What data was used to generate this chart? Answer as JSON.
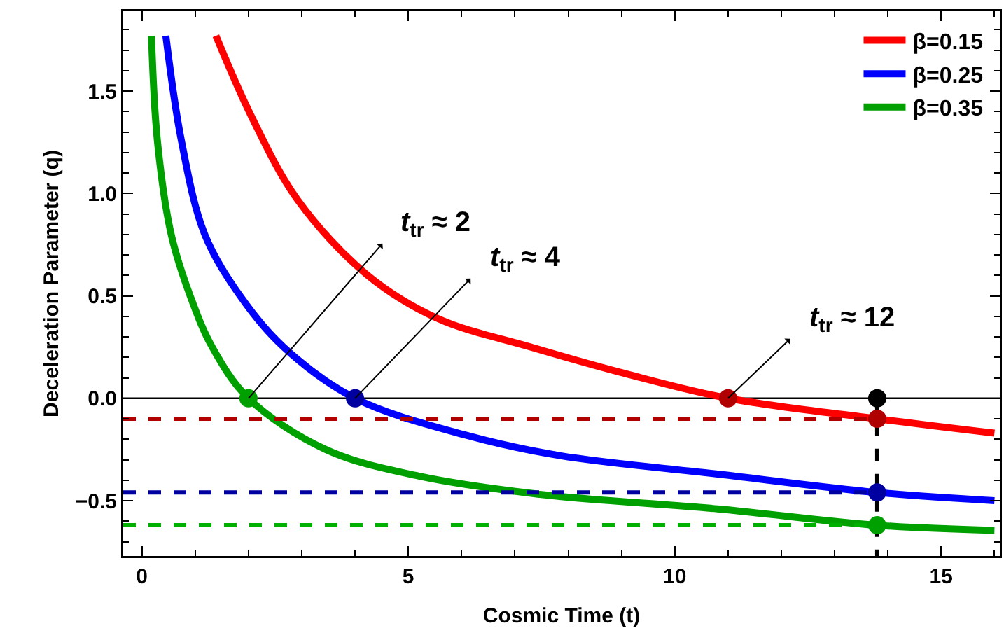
{
  "chart_data": {
    "type": "line",
    "xlabel": "Cosmic Time (t)",
    "ylabel": "Deceleration Parameter (q)",
    "xlim": [
      -0.35,
      16.1
    ],
    "ylim": [
      -0.77,
      1.89
    ],
    "xticks": [
      0,
      5,
      10,
      15
    ],
    "yticks": [
      {
        "value": -0.5,
        "label": "−0.5"
      },
      {
        "value": 0,
        "label": "0.0"
      },
      {
        "value": 0.5,
        "label": "0.5"
      },
      {
        "value": 1,
        "label": "1.0"
      },
      {
        "value": 1.5,
        "label": "1.5"
      }
    ],
    "grid": false,
    "legend": "top right",
    "line_style": "solid",
    "marker": "none",
    "series": [
      {
        "name": "β=0.15",
        "color": "#ff0000",
        "x": [
          1.39,
          2.05,
          2.92,
          4.24,
          5.55,
          7.3,
          9.08,
          11,
          13.8,
          16
        ],
        "values": [
          1.77,
          1.38,
          0.97,
          0.6,
          0.39,
          0.25,
          0.12,
          0,
          -0.1,
          -0.17
        ]
      },
      {
        "name": "β=0.25",
        "color": "#0000ff",
        "x": [
          0.45,
          0.74,
          1.18,
          1.87,
          2.66,
          4,
          6.08,
          7.84,
          10.8,
          13.8,
          16
        ],
        "values": [
          1.77,
          1.26,
          0.8,
          0.49,
          0.25,
          0,
          -0.18,
          -0.28,
          -0.37,
          -0.46,
          -0.5
        ]
      },
      {
        "name": "β=0.35",
        "color": "#00a000",
        "x": [
          0.18,
          0.29,
          0.55,
          0.92,
          1.32,
          2,
          3.45,
          5.2,
          7.5,
          10.8,
          13.8,
          16
        ],
        "values": [
          1.77,
          1.26,
          0.8,
          0.49,
          0.25,
          0,
          -0.25,
          -0.38,
          -0.47,
          -0.54,
          -0.62,
          -0.645
        ]
      },
      {
        "color": "#b00000",
        "line_style": "dashed",
        "x": [
          -0.35,
          13.8
        ],
        "values": [
          -0.1,
          -0.1
        ]
      },
      {
        "color": "#0000a0",
        "line_style": "dashed",
        "x": [
          -0.35,
          13.8
        ],
        "values": [
          -0.46,
          -0.46
        ]
      },
      {
        "color": "#00b000",
        "line_style": "dashed",
        "x": [
          -0.35,
          13.8
        ],
        "values": [
          -0.62,
          -0.62
        ]
      },
      {
        "color": "#000000",
        "line_style": "dashed",
        "x": [
          13.8,
          13.8
        ],
        "values": [
          0,
          -0.77
        ]
      },
      {
        "type": "scatter",
        "marker": "circle",
        "x": [
          2,
          4,
          11,
          13.8,
          13.8,
          13.8,
          13.8
        ],
        "values": [
          0,
          0,
          0,
          0,
          -0.1,
          -0.46,
          -0.62
        ],
        "colors": [
          "#00a000",
          "#0000a0",
          "#b00000",
          "#000000",
          "#b00000",
          "#0000a0",
          "#00a000"
        ]
      }
    ],
    "ref_lines": [
      {
        "axis": "y",
        "value": 0,
        "color": "#000000",
        "line_style": "solid"
      }
    ],
    "annotations": [
      {
        "text": "t$_{tr}$ ≈ 2",
        "x": 2,
        "y": 0
      },
      {
        "text": "t$_{tr}$ ≈ 4",
        "x": 4,
        "y": 0
      },
      {
        "text": "t$_{tr}$ ≈ 12",
        "x": 11,
        "y": 0
      }
    ]
  }
}
